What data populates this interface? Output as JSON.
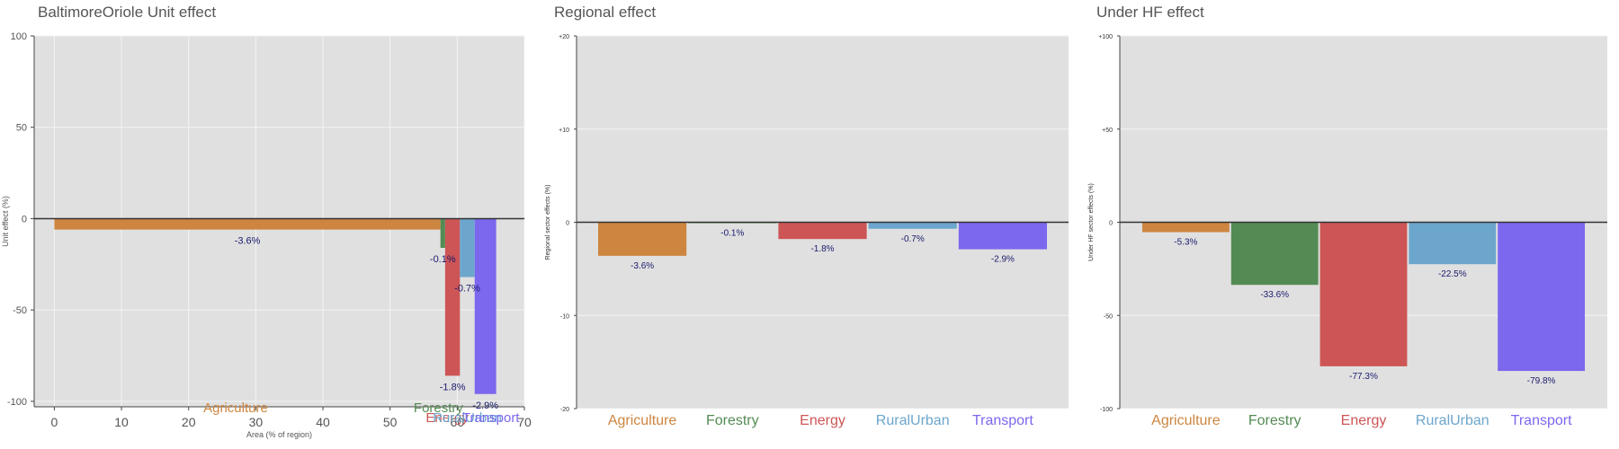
{
  "chart_data": [
    {
      "type": "bar",
      "variant": "variable-width",
      "title": "BaltimoreOriole Unit effect",
      "xlabel": "Area (% of region)",
      "ylabel": "Unit effect (%)",
      "xlim": [
        -3,
        70
      ],
      "ylim": [
        -103,
        100
      ],
      "xticks": [
        0,
        10,
        20,
        30,
        40,
        50,
        60,
        70
      ],
      "yticks": [
        100,
        50,
        0,
        -50,
        -100
      ],
      "ytick_labels": [
        "100",
        "50",
        "0",
        "-50",
        "-100"
      ],
      "grid": true,
      "bars": [
        {
          "category": "Agriculture",
          "x0": 0,
          "x1": 57.5,
          "value": -6,
          "label": "-3.6%",
          "color": "#cd853f"
        },
        {
          "category": "Forestry",
          "x0": 57.5,
          "x1": 58.2,
          "value": -16,
          "label": "-0.1%",
          "color": "#548b54"
        },
        {
          "category": "Energy",
          "x0": 58.2,
          "x1": 60.4,
          "value": -86,
          "label": "-1.8%",
          "color": "#cd5555"
        },
        {
          "category": "RuralUrban",
          "x0": 60.4,
          "x1": 62.6,
          "value": -32,
          "label": "-0.7%",
          "color": "#6ca6cd"
        },
        {
          "category": "Transport",
          "x0": 62.6,
          "x1": 65.8,
          "value": -96,
          "label": "-2.9%",
          "color": "#7b68ee"
        }
      ],
      "category_labels": [
        {
          "text": "Agriculture",
          "x": 27,
          "color": "#cd853f"
        },
        {
          "text": "Forestry",
          "x": 57.2,
          "color": "#548b54"
        },
        {
          "text": "Energy",
          "x": 58.5,
          "color": "#cd5555"
        },
        {
          "text": "RuralUrban",
          "x": 61.5,
          "color": "#6ca6cd"
        },
        {
          "text": "Transport",
          "x": 65,
          "color": "#7b68ee"
        }
      ]
    },
    {
      "type": "bar",
      "title": "Regional effect",
      "xlabel": "",
      "ylabel": "Regional sector effects (%)",
      "ylim": [
        -20,
        20
      ],
      "yticks": [
        20,
        10,
        0,
        -10,
        -20
      ],
      "ytick_labels": [
        "+20",
        "+10",
        "0",
        "-10",
        "-20"
      ],
      "grid": true,
      "categories": [
        "Agriculture",
        "Forestry",
        "Energy",
        "RuralUrban",
        "Transport"
      ],
      "values": [
        -3.6,
        -0.1,
        -1.8,
        -0.7,
        -2.9
      ],
      "labels": [
        "-3.6%",
        "-0.1%",
        "-1.8%",
        "-0.7%",
        "-2.9%"
      ],
      "colors": [
        "#cd853f",
        "#548b54",
        "#cd5555",
        "#6ca6cd",
        "#7b68ee"
      ]
    },
    {
      "type": "bar",
      "title": "Under HF effect",
      "xlabel": "",
      "ylabel": "Under HF sector effects (%)",
      "ylim": [
        -100,
        100
      ],
      "yticks": [
        100,
        50,
        0,
        -50,
        -100
      ],
      "ytick_labels": [
        "+100",
        "+50",
        "0",
        "-50",
        "-100"
      ],
      "grid": true,
      "categories": [
        "Agriculture",
        "Forestry",
        "Energy",
        "RuralUrban",
        "Transport"
      ],
      "values": [
        -5.3,
        -33.6,
        -77.3,
        -22.5,
        -79.8
      ],
      "labels": [
        "-5.3%",
        "-33.6%",
        "-77.3%",
        "-22.5%",
        "-79.8%"
      ],
      "colors": [
        "#cd853f",
        "#548b54",
        "#cd5555",
        "#6ca6cd",
        "#7b68ee"
      ]
    }
  ],
  "style": {
    "plot_background": "#e0e0e0",
    "grid_color": "#f4f4f4",
    "zero_line_color": "#333333",
    "value_label_color": "#1a1a6e",
    "axis_text_color": "#555555"
  }
}
